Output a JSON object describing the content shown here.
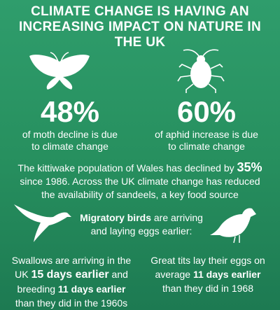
{
  "title": "CLIMATE CHANGE IS HAVING AN INCREASING IMPACT ON NATURE IN THE UK",
  "moth": {
    "stat": "48%",
    "caption": "of moth decline is due to climate change"
  },
  "aphid": {
    "stat": "60%",
    "caption": "of aphid increase is due to climate change"
  },
  "kittiwake": [
    "The kittiwake population of Wales has declined by ",
    "35%",
    " since 1986. Across the UK climate change has reduced the availability of sandeels, a key food source"
  ],
  "migratory": [
    "Migratory birds",
    " are arriving and laying eggs earlier:"
  ],
  "swallows": [
    "Swallows are arriving in the UK ",
    "15 days earlier",
    " and breeding ",
    "11 days earlier",
    " than they did in the 1960s"
  ],
  "great_tits": [
    "Great tits lay their eggs on average ",
    "11 days earlier",
    " than they did in 1968"
  ]
}
